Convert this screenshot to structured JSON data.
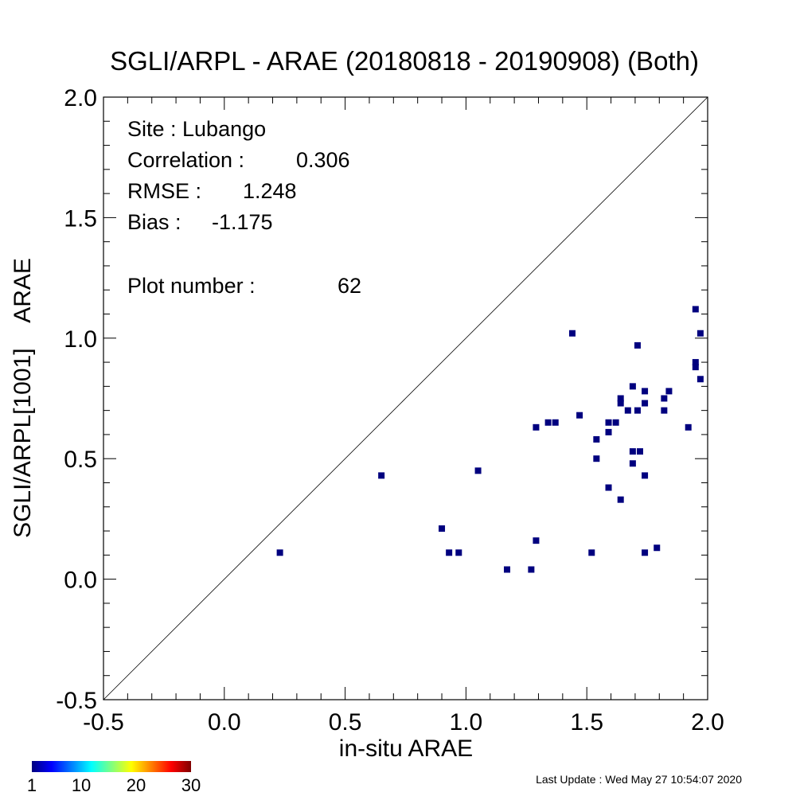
{
  "chart_data": {
    "type": "scatter",
    "title": "SGLI/ARPL - ARAE (20180818 - 20190908) (Both)",
    "xlabel": "in-situ ARAE",
    "ylabel": "SGLI/ARPL[1001]    ARAE",
    "xlim": [
      -0.5,
      2.0
    ],
    "ylim": [
      -0.5,
      2.0
    ],
    "x_ticks": [
      "-0.5",
      "0.0",
      "0.5",
      "1.0",
      "1.5",
      "2.0"
    ],
    "y_ticks": [
      "-0.5",
      "0.0",
      "0.5",
      "1.0",
      "1.5",
      "2.0"
    ],
    "one_to_one_line": true,
    "grid": false,
    "marker_color": "#00007f",
    "annotations": {
      "site": "Site : Lubango",
      "correlation_label": "Correlation :",
      "correlation_value": "0.306",
      "rmse_label": "RMSE :",
      "rmse_value": "1.248",
      "bias_label": "Bias :",
      "bias_value": "-1.175",
      "plot_number_label": "Plot number :",
      "plot_number_value": "62"
    },
    "colorbar": {
      "ticks": [
        "1",
        "10",
        "20",
        "30"
      ],
      "range": [
        1,
        30
      ]
    },
    "points": [
      {
        "x": 0.23,
        "y": 0.11
      },
      {
        "x": 0.65,
        "y": 0.43
      },
      {
        "x": 0.9,
        "y": 0.21
      },
      {
        "x": 0.93,
        "y": 0.11
      },
      {
        "x": 0.97,
        "y": 0.11
      },
      {
        "x": 1.05,
        "y": 0.45
      },
      {
        "x": 1.17,
        "y": 0.04
      },
      {
        "x": 1.27,
        "y": 0.04
      },
      {
        "x": 1.29,
        "y": 0.16
      },
      {
        "x": 1.29,
        "y": 0.63
      },
      {
        "x": 1.34,
        "y": 0.65
      },
      {
        "x": 1.37,
        "y": 0.65
      },
      {
        "x": 1.44,
        "y": 1.02
      },
      {
        "x": 1.47,
        "y": 0.68
      },
      {
        "x": 1.52,
        "y": 0.11
      },
      {
        "x": 1.54,
        "y": 0.58
      },
      {
        "x": 1.54,
        "y": 0.5
      },
      {
        "x": 1.59,
        "y": 0.65
      },
      {
        "x": 1.59,
        "y": 0.61
      },
      {
        "x": 1.59,
        "y": 0.38
      },
      {
        "x": 1.62,
        "y": 0.65
      },
      {
        "x": 1.64,
        "y": 0.75
      },
      {
        "x": 1.64,
        "y": 0.73
      },
      {
        "x": 1.64,
        "y": 0.33
      },
      {
        "x": 1.67,
        "y": 0.7
      },
      {
        "x": 1.69,
        "y": 0.8
      },
      {
        "x": 1.69,
        "y": 0.53
      },
      {
        "x": 1.69,
        "y": 0.48
      },
      {
        "x": 1.71,
        "y": 0.97
      },
      {
        "x": 1.71,
        "y": 0.7
      },
      {
        "x": 1.72,
        "y": 0.53
      },
      {
        "x": 1.74,
        "y": 0.78
      },
      {
        "x": 1.74,
        "y": 0.73
      },
      {
        "x": 1.74,
        "y": 0.43
      },
      {
        "x": 1.74,
        "y": 0.11
      },
      {
        "x": 1.79,
        "y": 0.13
      },
      {
        "x": 1.82,
        "y": 0.75
      },
      {
        "x": 1.82,
        "y": 0.7
      },
      {
        "x": 1.84,
        "y": 0.78
      },
      {
        "x": 1.92,
        "y": 0.63
      },
      {
        "x": 1.95,
        "y": 1.12
      },
      {
        "x": 1.95,
        "y": 0.9
      },
      {
        "x": 1.95,
        "y": 0.88
      },
      {
        "x": 1.97,
        "y": 1.02
      },
      {
        "x": 1.97,
        "y": 0.83
      }
    ]
  },
  "footer": {
    "last_update": "Last Update : Wed May 27 10:54:07 2020"
  }
}
